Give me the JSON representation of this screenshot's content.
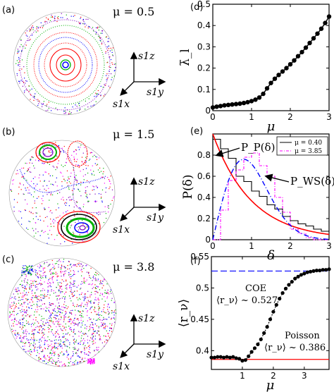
{
  "panels": {
    "a": {
      "label": "(a)",
      "mu_text": "μ = 0.5"
    },
    "b": {
      "label": "(b)",
      "mu_text": "μ = 1.5"
    },
    "c": {
      "label": "(c)",
      "mu_text": "μ = 3.8"
    },
    "d": {
      "label": "(d)"
    },
    "e": {
      "label": "(e)"
    },
    "f": {
      "label": "(f)"
    }
  },
  "axes_triad": {
    "z": "s1z",
    "y": "s1y",
    "x": "s1x"
  },
  "colors": {
    "red": "#ff0000",
    "blue": "#0000ff",
    "green": "#00b000",
    "magenta": "#ff00ff",
    "purple": "#8000c0",
    "black": "#000000"
  },
  "chart_data": [
    {
      "panel": "d",
      "type": "line",
      "xlabel": "μ",
      "ylabel": "λ̄_l",
      "xlim": [
        0,
        3
      ],
      "ylim": [
        0,
        0.5
      ],
      "xticks": [
        0,
        1,
        2,
        3
      ],
      "yticks": [
        0,
        0.1,
        0.2,
        0.3,
        0.4,
        0.5
      ],
      "ytick_labels": [
        "0",
        "0.1",
        "0.2",
        "0.3",
        "0.4",
        "0.5"
      ],
      "x": [
        0.0,
        0.1,
        0.2,
        0.3,
        0.4,
        0.5,
        0.6,
        0.7,
        0.8,
        0.9,
        1.0,
        1.1,
        1.2,
        1.3,
        1.4,
        1.5,
        1.6,
        1.7,
        1.8,
        1.9,
        2.0,
        2.1,
        2.2,
        2.3,
        2.4,
        2.5,
        2.6,
        2.7,
        2.8,
        2.9,
        3.0
      ],
      "y": [
        0.015,
        0.019,
        0.022,
        0.025,
        0.027,
        0.029,
        0.031,
        0.033,
        0.036,
        0.04,
        0.045,
        0.052,
        0.062,
        0.079,
        0.105,
        0.13,
        0.15,
        0.168,
        0.184,
        0.2,
        0.218,
        0.236,
        0.256,
        0.275,
        0.296,
        0.318,
        0.34,
        0.362,
        0.385,
        0.412,
        0.442
      ]
    },
    {
      "panel": "e",
      "type": "line",
      "xlabel": "δ",
      "ylabel": "P(δ)",
      "xlim": [
        0,
        3
      ],
      "ylim": [
        0,
        1.0
      ],
      "xticks": [
        0,
        1,
        2,
        3
      ],
      "yticks": [
        0,
        0.2,
        0.4,
        0.6,
        0.8
      ],
      "ytick_labels": [
        "0",
        "0.2",
        "0.4",
        "0.6",
        "0.8"
      ],
      "legend_position": "top-right",
      "legend": [
        "μ = 0.40",
        "μ = 3.85"
      ],
      "annotations": {
        "pp": "P_P(δ)",
        "pws": "P_WS(δ)"
      },
      "histograms": [
        {
          "name": "μ = 0.40",
          "bin_width": 0.2,
          "values": [
            0.95,
            0.86,
            0.77,
            0.6,
            0.55,
            0.46,
            0.41,
            0.33,
            0.29,
            0.22,
            0.18,
            0.15,
            0.13,
            0.1,
            0.08
          ]
        },
        {
          "name": "μ = 3.85",
          "bin_width": 0.2,
          "values": [
            0.0,
            0.28,
            0.56,
            0.66,
            0.78,
            0.82,
            0.7,
            0.6,
            0.4,
            0.26,
            0.1,
            0.06,
            0.02,
            0.0,
            0.0
          ]
        }
      ],
      "curves": [
        {
          "name": "P_P(δ)",
          "formula": "exp(-x)"
        },
        {
          "name": "P_WS(δ)",
          "formula": "(pi/2) x exp(-pi x^2 / 4)"
        }
      ]
    },
    {
      "panel": "f",
      "type": "line",
      "xlabel": "μ",
      "ylabel": "⟨r_ν⟩",
      "xlim": [
        0,
        3.8
      ],
      "ylim": [
        0.37,
        0.55
      ],
      "xticks": [
        1,
        2,
        3
      ],
      "yticks": [
        0.4,
        0.45,
        0.5,
        0.55
      ],
      "ytick_labels": [
        "0.4",
        "0.45",
        "0.5",
        "0.55"
      ],
      "reference_lines": [
        {
          "name": "COE",
          "value": 0.527
        },
        {
          "name": "Poisson",
          "value": 0.386
        }
      ],
      "annotations": {
        "coe_title": "COE",
        "coe_value": "⟨r_ν⟩ ~ 0.527",
        "poisson_title": "Poisson",
        "poisson_value": "⟨r_ν⟩ ~ 0.386"
      },
      "x": [
        0.0,
        0.1,
        0.2,
        0.3,
        0.4,
        0.5,
        0.6,
        0.7,
        0.8,
        0.9,
        1.0,
        1.1,
        1.2,
        1.3,
        1.4,
        1.5,
        1.6,
        1.7,
        1.8,
        1.9,
        2.0,
        2.1,
        2.2,
        2.3,
        2.4,
        2.5,
        2.6,
        2.7,
        2.8,
        2.9,
        3.0,
        3.1,
        3.2,
        3.3,
        3.4,
        3.5,
        3.6,
        3.7,
        3.8
      ],
      "y": [
        0.389,
        0.389,
        0.39,
        0.39,
        0.389,
        0.39,
        0.389,
        0.39,
        0.388,
        0.387,
        0.384,
        0.385,
        0.391,
        0.398,
        0.404,
        0.41,
        0.418,
        0.428,
        0.438,
        0.45,
        0.462,
        0.473,
        0.483,
        0.492,
        0.499,
        0.505,
        0.51,
        0.515,
        0.518,
        0.521,
        0.523,
        0.525,
        0.526,
        0.527,
        0.528,
        0.528,
        0.529,
        0.529,
        0.53
      ]
    }
  ]
}
